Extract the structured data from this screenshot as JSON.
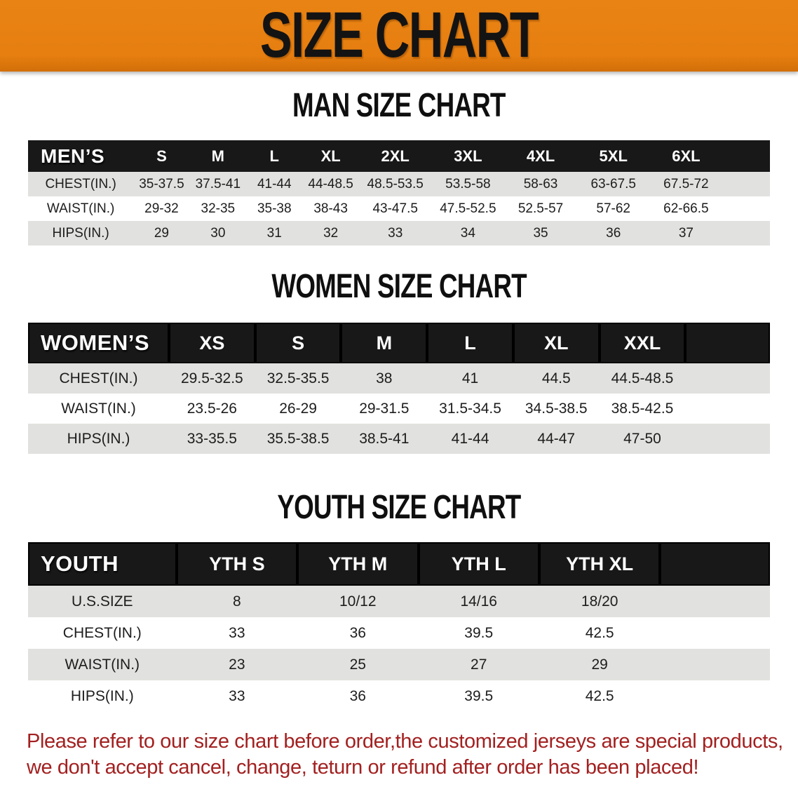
{
  "banner": {
    "title": "SIZE CHART"
  },
  "men": {
    "heading": "MAN SIZE CHART",
    "corner": "MEN’S",
    "sizes": [
      "S",
      "M",
      "L",
      "XL",
      "2XL",
      "3XL",
      "4XL",
      "5XL",
      "6XL"
    ],
    "rows": [
      {
        "label": "CHEST(IN.)",
        "values": [
          "35-37.5",
          "37.5-41",
          "41-44",
          "44-48.5",
          "48.5-53.5",
          "53.5-58",
          "58-63",
          "63-67.5",
          "67.5-72"
        ]
      },
      {
        "label": "WAIST(IN.)",
        "values": [
          "29-32",
          "32-35",
          "35-38",
          "38-43",
          "43-47.5",
          "47.5-52.5",
          "52.5-57",
          "57-62",
          "62-66.5"
        ]
      },
      {
        "label": "HIPS(IN.)",
        "values": [
          "29",
          "30",
          "31",
          "32",
          "33",
          "34",
          "35",
          "36",
          "37"
        ]
      }
    ]
  },
  "women": {
    "heading": "WOMEN SIZE CHART",
    "corner": "WOMEN’S",
    "sizes": [
      "XS",
      "S",
      "M",
      "L",
      "XL",
      "XXL"
    ],
    "rows": [
      {
        "label": "CHEST(IN.)",
        "values": [
          "29.5-32.5",
          "32.5-35.5",
          "38",
          "41",
          "44.5",
          "44.5-48.5"
        ]
      },
      {
        "label": "WAIST(IN.)",
        "values": [
          "23.5-26",
          "26-29",
          "29-31.5",
          "31.5-34.5",
          "34.5-38.5",
          "38.5-42.5"
        ]
      },
      {
        "label": "HIPS(IN.)",
        "values": [
          "33-35.5",
          "35.5-38.5",
          "38.5-41",
          "41-44",
          "44-47",
          "47-50"
        ]
      }
    ]
  },
  "youth": {
    "heading": "YOUTH SIZE CHART",
    "corner": "YOUTH",
    "sizes": [
      "YTH S",
      "YTH M",
      "YTH L",
      "YTH XL"
    ],
    "rows": [
      {
        "label": "U.S.SIZE",
        "values": [
          "8",
          "10/12",
          "14/16",
          "18/20"
        ]
      },
      {
        "label": "CHEST(IN.)",
        "values": [
          "33",
          "36",
          "39.5",
          "42.5"
        ]
      },
      {
        "label": "WAIST(IN.)",
        "values": [
          "23",
          "25",
          "27",
          "29"
        ]
      },
      {
        "label": "HIPS(IN.)",
        "values": [
          "33",
          "36",
          "39.5",
          "42.5"
        ]
      }
    ]
  },
  "disclaimer": {
    "line1": "Please refer to our size chart before order,the customized jerseys are special products,",
    "line2": "we don't accept cancel, change, teturn or refund after order has been placed!"
  },
  "colors": {
    "banner_orange": "#E67E10",
    "header_black": "#181818",
    "row_gray": "#E1E1DF",
    "disclaimer_red": "#A32020"
  }
}
